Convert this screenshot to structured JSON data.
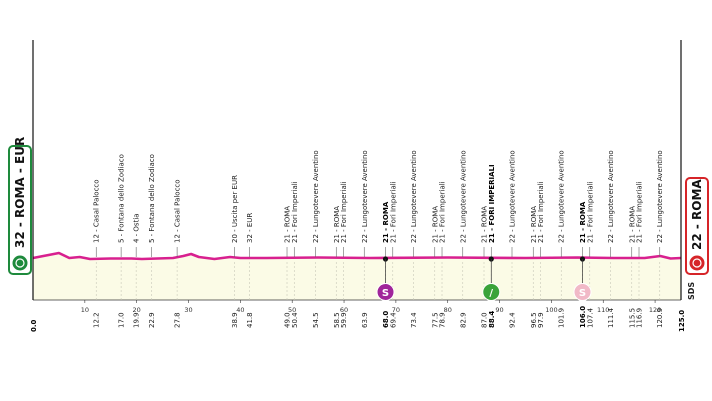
{
  "chart_data": {
    "type": "area",
    "title": "",
    "start": {
      "label": "32 - ROMA - EUR",
      "km": "0.0",
      "color": "#1e8a3c"
    },
    "finish": {
      "label": "22 - ROMA",
      "km": "125.0",
      "color": "#d62428"
    },
    "xlim": [
      0,
      125
    ],
    "x_ticks": [
      10,
      20,
      30,
      40,
      50,
      60,
      70,
      80,
      90,
      100,
      110,
      120
    ],
    "logo_text": "SDS",
    "profile_color": "#d8208f",
    "fill_color": "#fbfbe6",
    "profile": [
      [
        0,
        1
      ],
      [
        3,
        4
      ],
      [
        5,
        6
      ],
      [
        7,
        1
      ],
      [
        9,
        2
      ],
      [
        11,
        0
      ],
      [
        15,
        0.5
      ],
      [
        19,
        0.5
      ],
      [
        21,
        0
      ],
      [
        27,
        1
      ],
      [
        29,
        3
      ],
      [
        30.5,
        5
      ],
      [
        32,
        2
      ],
      [
        35,
        0
      ],
      [
        38,
        2
      ],
      [
        40,
        1
      ],
      [
        45,
        1
      ],
      [
        55,
        1.5
      ],
      [
        65,
        1
      ],
      [
        80,
        1.5
      ],
      [
        95,
        1
      ],
      [
        105,
        1.5
      ],
      [
        112,
        1
      ],
      [
        118,
        1
      ],
      [
        121,
        3
      ],
      [
        123,
        0.5
      ],
      [
        125,
        1
      ]
    ],
    "points": [
      {
        "km": "12.2",
        "name": "12 - Casal Palocco",
        "x": 12.2
      },
      {
        "km": "17.0",
        "name": "5 - Fontana dello Zodiaco",
        "x": 17.0
      },
      {
        "km": "19.9",
        "name": "4 - Ostia",
        "x": 19.9
      },
      {
        "km": "22.9",
        "name": "5 - Fontana dello Zodiaco",
        "x": 22.9
      },
      {
        "km": "27.8",
        "name": "12 - Casal Palocco",
        "x": 27.8
      },
      {
        "km": "38.9",
        "name": "20 - Uscita per EUR",
        "x": 38.9
      },
      {
        "km": "41.8",
        "name": "32 - EUR",
        "x": 41.8
      },
      {
        "km": "49.0",
        "name": "21 - ROMA",
        "x": 49.0
      },
      {
        "km": "50.4",
        "name": "21 - Fori Imperiali",
        "x": 50.4
      },
      {
        "km": "54.5",
        "name": "22 - Lungotevere Aventino",
        "x": 54.5
      },
      {
        "km": "58.5",
        "name": "21 - ROMA",
        "x": 58.5
      },
      {
        "km": "59.9",
        "name": "21 - Fori Imperiali",
        "x": 59.9
      },
      {
        "km": "63.9",
        "name": "22 - Lungotevere Aventino",
        "x": 63.9
      },
      {
        "km": "68.0",
        "name": "21 - ROMA",
        "x": 68.0,
        "bold": true
      },
      {
        "km": "69.4",
        "name": "21 - Fori Imperiali",
        "x": 69.4
      },
      {
        "km": "73.4",
        "name": "22 - Lungotevere Aventino",
        "x": 73.4
      },
      {
        "km": "77.5",
        "name": "21 - ROMA",
        "x": 77.5
      },
      {
        "km": "78.9",
        "name": "21 - Fori Imperiali",
        "x": 78.9
      },
      {
        "km": "82.9",
        "name": "22 - Lungotevere Aventino",
        "x": 82.9
      },
      {
        "km": "87.0",
        "name": "21 - ROMA",
        "x": 87.0
      },
      {
        "km": "88.4",
        "name": "21 - FORI IMPERIALI",
        "x": 88.4,
        "bold": true
      },
      {
        "km": "92.4",
        "name": "22 - Lungotevere Aventino",
        "x": 92.4
      },
      {
        "km": "96.5",
        "name": "21 - ROMA",
        "x": 96.5
      },
      {
        "km": "97.9",
        "name": "21 - Fori Imperiali",
        "x": 97.9
      },
      {
        "km": "101.9",
        "name": "22 - Lungotevere Aventino",
        "x": 101.9
      },
      {
        "km": "106.0",
        "name": "21 - ROMA",
        "x": 106.0,
        "bold": true
      },
      {
        "km": "107.4",
        "name": "21 - Fori Imperiali",
        "x": 107.4
      },
      {
        "km": "111.4",
        "name": "22 - Lungotevere Aventino",
        "x": 111.4
      },
      {
        "km": "115.5",
        "name": "21 - ROMA",
        "x": 115.5
      },
      {
        "km": "116.9",
        "name": "21 - Fori Imperiali",
        "x": 116.9
      },
      {
        "km": "120.9",
        "name": "22 - Lungotevere Aventino",
        "x": 120.9
      }
    ],
    "sprints": [
      {
        "x": 68.0,
        "symbol": "S",
        "fill": "#a0259a",
        "text_color": "#ffffff"
      },
      {
        "x": 88.4,
        "symbol": "/",
        "fill": "#3aa33a",
        "text_color": "#ffffff"
      },
      {
        "x": 106.0,
        "symbol": "S",
        "fill": "#f1b9c7",
        "text_color": "#ffffff"
      }
    ]
  }
}
